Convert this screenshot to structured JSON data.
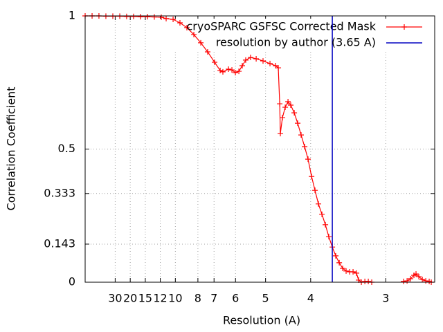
{
  "chart_data": {
    "type": "line",
    "xlabel": "Resolution (A)",
    "ylabel": "Correlation Coefficient",
    "xlim": [
      0,
      0.3875
    ],
    "ylim": [
      0,
      1
    ],
    "xticks": [
      {
        "value": 0.0333,
        "label": "30"
      },
      {
        "value": 0.05,
        "label": "20"
      },
      {
        "value": 0.0667,
        "label": "15"
      },
      {
        "value": 0.0833,
        "label": "12"
      },
      {
        "value": 0.1,
        "label": "10"
      },
      {
        "value": 0.125,
        "label": "8"
      },
      {
        "value": 0.1429,
        "label": "7"
      },
      {
        "value": 0.1667,
        "label": "6"
      },
      {
        "value": 0.2,
        "label": "5"
      },
      {
        "value": 0.25,
        "label": "4"
      },
      {
        "value": 0.3333,
        "label": "3"
      }
    ],
    "yticks": [
      0,
      0.143,
      0.333,
      0.5,
      1
    ],
    "grid": true,
    "legend": "top-right",
    "x": [
      0,
      0.0077,
      0.0153,
      0.023,
      0.0307,
      0.0384,
      0.046,
      0.0537,
      0.0614,
      0.0691,
      0.0767,
      0.0844,
      0.0898,
      0.0975,
      0.1051,
      0.1128,
      0.1205,
      0.1282,
      0.1358,
      0.1435,
      0.1497,
      0.1527,
      0.1589,
      0.1627,
      0.1665,
      0.1704,
      0.1742,
      0.178,
      0.1834,
      0.1896,
      0.1972,
      0.2049,
      0.2111,
      0.2141,
      0.2157,
      0.2164,
      0.2187,
      0.2218,
      0.2249,
      0.2279,
      0.2318,
      0.2356,
      0.2394,
      0.2433,
      0.2471,
      0.251,
      0.2548,
      0.2586,
      0.2625,
      0.2663,
      0.2701,
      0.274,
      0.2778,
      0.2817,
      0.2855,
      0.2893,
      0.2932,
      0.297,
      0.3008,
      0.3031,
      0.3062,
      0.3101,
      0.3139,
      0.3177,
      0.3239,
      0.3315,
      0.3392,
      0.3469,
      0.353,
      0.3569,
      0.3607,
      0.3645,
      0.3668,
      0.3699,
      0.3738,
      0.3776,
      0.3814,
      0.3837
    ],
    "series": [
      {
        "name": "cryoSPARC GSFSC Corrected Mask",
        "color": "#ff0000",
        "values": [
          1.0,
          1.0,
          1.0,
          0.999,
          0.999,
          0.999,
          0.998,
          0.998,
          0.997,
          0.997,
          0.996,
          0.995,
          0.99,
          0.987,
          0.974,
          0.956,
          0.93,
          0.899,
          0.865,
          0.826,
          0.795,
          0.79,
          0.8,
          0.797,
          0.787,
          0.792,
          0.813,
          0.834,
          0.844,
          0.839,
          0.831,
          0.821,
          0.813,
          0.805,
          0.67,
          0.558,
          0.618,
          0.657,
          0.678,
          0.665,
          0.636,
          0.597,
          0.553,
          0.509,
          0.462,
          0.397,
          0.345,
          0.294,
          0.255,
          0.216,
          0.171,
          0.132,
          0.099,
          0.073,
          0.052,
          0.042,
          0.039,
          0.039,
          0.034,
          0.008,
          0.0,
          0.003,
          0.003,
          0.0,
          null,
          null,
          null,
          null,
          0.003,
          0.005,
          0.013,
          0.026,
          0.031,
          0.021,
          0.01,
          0.005,
          0.003,
          0.0
        ]
      }
    ],
    "threshold": {
      "name": "resolution by author (3.65 A)",
      "color": "#0000c0",
      "x": 0.274
    }
  }
}
